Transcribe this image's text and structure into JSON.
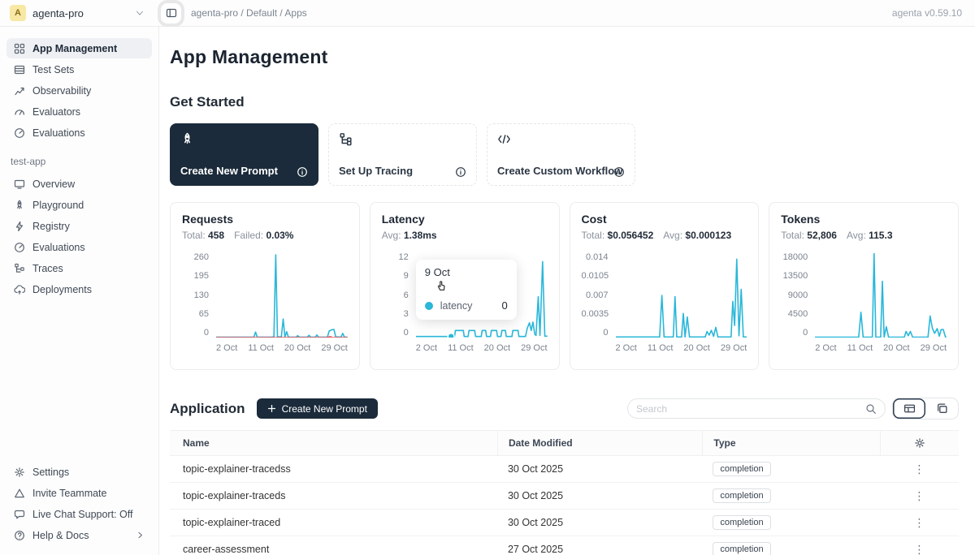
{
  "header": {
    "workspace": "agenta-pro",
    "avatar_letter": "A",
    "breadcrumb": "agenta-pro / Default / Apps",
    "version": "agenta v0.59.10"
  },
  "sidebar": {
    "top_items": [
      {
        "label": "App Management",
        "icon": "grid-icon",
        "active": true
      },
      {
        "label": "Test Sets",
        "icon": "table-icon"
      },
      {
        "label": "Observability",
        "icon": "trend-icon"
      },
      {
        "label": "Evaluators",
        "icon": "gauge-icon"
      },
      {
        "label": "Evaluations",
        "icon": "speedometer-icon"
      }
    ],
    "section_label": "test-app",
    "app_items": [
      {
        "label": "Overview",
        "icon": "monitor-icon"
      },
      {
        "label": "Playground",
        "icon": "rocket-icon"
      },
      {
        "label": "Registry",
        "icon": "lightning-icon"
      },
      {
        "label": "Evaluations",
        "icon": "speedometer-icon"
      },
      {
        "label": "Traces",
        "icon": "tree-icon"
      },
      {
        "label": "Deployments",
        "icon": "cloud-icon"
      }
    ],
    "bottom_items": [
      {
        "label": "Settings",
        "icon": "gear-icon"
      },
      {
        "label": "Invite Teammate",
        "icon": "triangle-icon"
      },
      {
        "label": "Live Chat Support: Off",
        "icon": "chat-icon"
      },
      {
        "label": "Help & Docs",
        "icon": "help-icon",
        "chevron": true
      }
    ]
  },
  "main": {
    "page_title": "App Management",
    "get_started": {
      "title": "Get Started",
      "cards": [
        {
          "label": "Create New Prompt",
          "icon": "rocket-icon",
          "dark": true
        },
        {
          "label": "Set Up Tracing",
          "icon": "tree-icon",
          "dark": false
        },
        {
          "label": "Create Custom Workflow",
          "icon": "code-icon",
          "dark": false
        }
      ]
    },
    "application": {
      "title": "Application",
      "create_button_label": "Create New Prompt",
      "search_placeholder": "Search",
      "columns": [
        "Name",
        "Date Modified",
        "Type"
      ],
      "rows": [
        {
          "name": "topic-explainer-tracedss",
          "date": "30 Oct 2025",
          "type": "completion"
        },
        {
          "name": "topic-explainer-traceds",
          "date": "30 Oct 2025",
          "type": "completion"
        },
        {
          "name": "topic-explainer-traced",
          "date": "30 Oct 2025",
          "type": "completion"
        },
        {
          "name": "career-assessment",
          "date": "27 Oct 2025",
          "type": "completion"
        }
      ]
    }
  },
  "latency_tooltip": {
    "date": "9 Oct",
    "series_label": "latency",
    "value": "0"
  },
  "colors": {
    "accent_dark": "#1b2b3b",
    "chart_line": "#2ab7d9",
    "chart_failed": "#e8484f",
    "avatar_bg": "#f7e8a4"
  },
  "chart_data": [
    {
      "type": "line",
      "title": "Requests",
      "stats": [
        {
          "label": "Total:",
          "value": "458"
        },
        {
          "label": "Failed:",
          "value": "0.03%"
        }
      ],
      "y_ticks": [
        "260",
        "195",
        "130",
        "65",
        "0"
      ],
      "x_ticks": [
        "2 Oct",
        "11 Oct",
        "20 Oct",
        "29 Oct"
      ],
      "ylim": [
        0,
        260
      ],
      "xlim": [
        1,
        31
      ],
      "grid": false,
      "legend": false,
      "series": [
        {
          "name": "requests",
          "color": "#2ab7d9",
          "points": [
            [
              1,
              1
            ],
            [
              8,
              1
            ],
            [
              9.6,
              1
            ],
            [
              10,
              17
            ],
            [
              10.4,
              1
            ],
            [
              13.5,
              1
            ],
            [
              14.2,
              2
            ],
            [
              14.6,
              255
            ],
            [
              15,
              2
            ],
            [
              15.9,
              2
            ],
            [
              16.3,
              57
            ],
            [
              16.7,
              2
            ],
            [
              17.1,
              18
            ],
            [
              17.5,
              1
            ],
            [
              19.3,
              1
            ],
            [
              19.6,
              6
            ],
            [
              20,
              1
            ],
            [
              21.8,
              1
            ],
            [
              22.2,
              7
            ],
            [
              22.6,
              1
            ],
            [
              23.6,
              1
            ],
            [
              24,
              8
            ],
            [
              24.4,
              1
            ],
            [
              26.4,
              1
            ],
            [
              26.8,
              20
            ],
            [
              27.4,
              24
            ],
            [
              27.9,
              25
            ],
            [
              28.3,
              2
            ],
            [
              29.5,
              1
            ],
            [
              29.9,
              13
            ],
            [
              30.3,
              1
            ],
            [
              31,
              1
            ]
          ]
        },
        {
          "name": "failed",
          "color": "#e8484f",
          "points": [
            [
              1,
              0
            ],
            [
              26.5,
              0
            ],
            [
              27,
              3
            ],
            [
              27.5,
              0
            ],
            [
              31,
              0
            ]
          ]
        }
      ]
    },
    {
      "type": "line",
      "title": "Latency",
      "stats": [
        {
          "label": "Avg:",
          "value": "1.38ms"
        }
      ],
      "y_ticks": [
        "12",
        "9",
        "6",
        "3",
        "0"
      ],
      "x_ticks": [
        "2 Oct",
        "11 Oct",
        "20 Oct",
        "29 Oct"
      ],
      "ylim": [
        0,
        12
      ],
      "xlim": [
        1,
        31
      ],
      "grid": false,
      "legend": false,
      "marker": [
        9,
        0.15
      ],
      "series": [
        {
          "name": "latency",
          "color": "#2ab7d9",
          "points": [
            [
              1,
              0.15
            ],
            [
              9,
              0.15
            ],
            [
              9.8,
              0.15
            ],
            [
              10,
              1
            ],
            [
              11.8,
              1
            ],
            [
              12,
              0.15
            ],
            [
              12.9,
              0.15
            ],
            [
              13.1,
              1
            ],
            [
              14.4,
              1
            ],
            [
              14.6,
              0.15
            ],
            [
              15.9,
              0.15
            ],
            [
              16.1,
              1
            ],
            [
              16.9,
              1
            ],
            [
              17.1,
              0.15
            ],
            [
              18,
              0.15
            ],
            [
              18.2,
              1
            ],
            [
              19.4,
              1
            ],
            [
              19.6,
              0.15
            ],
            [
              20.4,
              0.15
            ],
            [
              20.6,
              1
            ],
            [
              21.4,
              1
            ],
            [
              21.6,
              0.15
            ],
            [
              22.9,
              0.15
            ],
            [
              23.1,
              1
            ],
            [
              24.3,
              1
            ],
            [
              24.5,
              0.15
            ],
            [
              26,
              0.15
            ],
            [
              26.4,
              1.3
            ],
            [
              26.9,
              2.1
            ],
            [
              27.3,
              1
            ],
            [
              27.7,
              2.2
            ],
            [
              28.1,
              0.5
            ],
            [
              28.4,
              0.3
            ],
            [
              28.9,
              5.8
            ],
            [
              29.3,
              0.3
            ],
            [
              29.9,
              10.8
            ],
            [
              30.4,
              0.2
            ],
            [
              31,
              0.2
            ]
          ]
        }
      ]
    },
    {
      "type": "line",
      "title": "Cost",
      "stats": [
        {
          "label": "Total:",
          "value": "$0.056452"
        },
        {
          "label": "Avg:",
          "value": "$0.000123"
        }
      ],
      "y_ticks": [
        "0.014",
        "0.0105",
        "0.007",
        "0.0035",
        "0"
      ],
      "x_ticks": [
        "2 Oct",
        "11 Oct",
        "20 Oct",
        "29 Oct"
      ],
      "ylim": [
        0,
        0.014
      ],
      "xlim": [
        1,
        31
      ],
      "grid": false,
      "legend": false,
      "series": [
        {
          "name": "cost",
          "color": "#2ab7d9",
          "points": [
            [
              1,
              0.0001
            ],
            [
              11,
              0.0001
            ],
            [
              11.5,
              0.007
            ],
            [
              12,
              0.0001
            ],
            [
              14.1,
              0.0001
            ],
            [
              14.5,
              0.0068
            ],
            [
              14.9,
              0.0001
            ],
            [
              16,
              0.0001
            ],
            [
              16.4,
              0.004
            ],
            [
              16.8,
              0.0001
            ],
            [
              17.3,
              0.0034
            ],
            [
              17.8,
              0.0001
            ],
            [
              21.4,
              0.0001
            ],
            [
              21.8,
              0.001
            ],
            [
              22.3,
              0.0004
            ],
            [
              22.8,
              0.0012
            ],
            [
              23.3,
              0.0002
            ],
            [
              23.8,
              0.0017
            ],
            [
              24.3,
              0.0001
            ],
            [
              27.3,
              0.0001
            ],
            [
              27.7,
              0.006
            ],
            [
              28.1,
              0.002
            ],
            [
              28.6,
              0.013
            ],
            [
              29.1,
              0.0003
            ],
            [
              29.6,
              0.008
            ],
            [
              30.1,
              0.0001
            ],
            [
              31,
              0.0001
            ]
          ]
        }
      ]
    },
    {
      "type": "line",
      "title": "Tokens",
      "stats": [
        {
          "label": "Total:",
          "value": "52,806"
        },
        {
          "label": "Avg:",
          "value": "115.3"
        }
      ],
      "y_ticks": [
        "18000",
        "13500",
        "9000",
        "4500",
        "0"
      ],
      "x_ticks": [
        "2 Oct",
        "11 Oct",
        "20 Oct",
        "29 Oct"
      ],
      "ylim": [
        0,
        18000
      ],
      "xlim": [
        1,
        31
      ],
      "grid": false,
      "legend": false,
      "series": [
        {
          "name": "tokens",
          "color": "#2ab7d9",
          "points": [
            [
              1,
              80
            ],
            [
              11,
              80
            ],
            [
              11.5,
              5400
            ],
            [
              12,
              80
            ],
            [
              14.1,
              80
            ],
            [
              14.5,
              18000
            ],
            [
              14.9,
              80
            ],
            [
              16,
              80
            ],
            [
              16.4,
              12000
            ],
            [
              16.8,
              80
            ],
            [
              17.3,
              2300
            ],
            [
              17.8,
              80
            ],
            [
              21.4,
              80
            ],
            [
              21.8,
              1300
            ],
            [
              22.3,
              400
            ],
            [
              22.8,
              1300
            ],
            [
              23.3,
              80
            ],
            [
              26.8,
              80
            ],
            [
              27.3,
              4600
            ],
            [
              27.8,
              2000
            ],
            [
              28.3,
              900
            ],
            [
              28.9,
              1900
            ],
            [
              29.4,
              300
            ],
            [
              29.8,
              1700
            ],
            [
              30.3,
              1700
            ],
            [
              30.8,
              100
            ],
            [
              31,
              80
            ]
          ]
        }
      ]
    }
  ]
}
